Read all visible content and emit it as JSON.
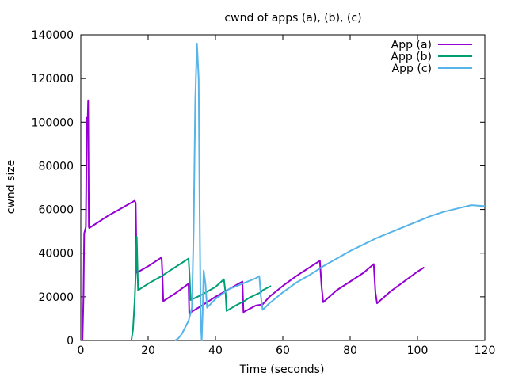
{
  "chart_data": {
    "type": "line",
    "title": "cwnd of apps (a), (b), (c)",
    "xlabel": "Time (seconds)",
    "ylabel": "cwnd size",
    "xlim": [
      0,
      120
    ],
    "ylim": [
      0,
      140000
    ],
    "x_ticks": [
      0,
      20,
      40,
      60,
      80,
      100,
      120
    ],
    "y_ticks": [
      0,
      20000,
      40000,
      60000,
      80000,
      100000,
      120000,
      140000
    ],
    "grid": false,
    "legend_position": "top-right",
    "series": [
      {
        "name": "App (a)",
        "color": "#9400d3",
        "points": [
          [
            0.5,
            0
          ],
          [
            0.8,
            20000
          ],
          [
            1.0,
            49000
          ],
          [
            1.5,
            52000
          ],
          [
            1.8,
            102000
          ],
          [
            2.0,
            98000
          ],
          [
            2.2,
            110000
          ],
          [
            2.4,
            52000
          ],
          [
            2.5,
            51500
          ],
          [
            5,
            54000
          ],
          [
            8,
            57000
          ],
          [
            12,
            60500
          ],
          [
            16,
            64000
          ],
          [
            16.3,
            63000
          ],
          [
            16.6,
            31000
          ],
          [
            20,
            34000
          ],
          [
            24,
            38000
          ],
          [
            24.2,
            32000
          ],
          [
            24.5,
            18000
          ],
          [
            28,
            21500
          ],
          [
            32,
            26000
          ],
          [
            32.2,
            12500
          ],
          [
            36,
            16000
          ],
          [
            40,
            20000
          ],
          [
            44,
            23500
          ],
          [
            48,
            27000
          ],
          [
            48.3,
            13000
          ],
          [
            52,
            16000
          ],
          [
            54,
            16500
          ],
          [
            56,
            20000
          ],
          [
            60,
            25000
          ],
          [
            64,
            29500
          ],
          [
            68,
            33500
          ],
          [
            71,
            36500
          ],
          [
            71.5,
            25000
          ],
          [
            72,
            17500
          ],
          [
            76,
            23000
          ],
          [
            80,
            27000
          ],
          [
            84,
            31000
          ],
          [
            87,
            35000
          ],
          [
            87.5,
            22000
          ],
          [
            88,
            17000
          ],
          [
            92,
            22500
          ],
          [
            96,
            27000
          ],
          [
            100,
            31500
          ],
          [
            102,
            33500
          ]
        ]
      },
      {
        "name": "App (b)",
        "color": "#009e73",
        "points": [
          [
            15,
            0
          ],
          [
            15.5,
            5000
          ],
          [
            16,
            18000
          ],
          [
            16.3,
            30000
          ],
          [
            16.6,
            47500
          ],
          [
            16.9,
            30000
          ],
          [
            17,
            23000
          ],
          [
            20,
            26000
          ],
          [
            24,
            29500
          ],
          [
            28,
            33500
          ],
          [
            32,
            37500
          ],
          [
            32.3,
            30000
          ],
          [
            32.6,
            18500
          ],
          [
            36,
            21000
          ],
          [
            40,
            24500
          ],
          [
            42.5,
            28000
          ],
          [
            43,
            21500
          ],
          [
            43.3,
            13500
          ],
          [
            46,
            16000
          ],
          [
            48.5,
            18000
          ],
          [
            50,
            19500
          ],
          [
            52,
            21000
          ],
          [
            53.5,
            22000
          ],
          [
            54,
            23000
          ],
          [
            56.5,
            25000
          ]
        ]
      },
      {
        "name": "App (c)",
        "color": "#56b4e9",
        "points": [
          [
            28,
            0
          ],
          [
            29,
            1000
          ],
          [
            30,
            3000
          ],
          [
            31,
            6000
          ],
          [
            32,
            9000
          ],
          [
            33,
            15000
          ],
          [
            33.5,
            50000
          ],
          [
            34,
            110000
          ],
          [
            34.5,
            136000
          ],
          [
            35,
            120000
          ],
          [
            35.3,
            60000
          ],
          [
            35.6,
            10000
          ],
          [
            35.9,
            0
          ],
          [
            36.2,
            14000
          ],
          [
            36.5,
            32000
          ],
          [
            37,
            26000
          ],
          [
            37.5,
            15000
          ],
          [
            40,
            19000
          ],
          [
            44,
            23500
          ],
          [
            48,
            26000
          ],
          [
            52,
            28500
          ],
          [
            53,
            29500
          ],
          [
            53.5,
            20000
          ],
          [
            54,
            14000
          ],
          [
            56,
            17000
          ],
          [
            60,
            22000
          ],
          [
            64,
            26500
          ],
          [
            68,
            30000
          ],
          [
            72,
            34000
          ],
          [
            76,
            37500
          ],
          [
            80,
            41000
          ],
          [
            84,
            44000
          ],
          [
            88,
            47000
          ],
          [
            92,
            49500
          ],
          [
            96,
            52000
          ],
          [
            100,
            54500
          ],
          [
            104,
            57000
          ],
          [
            108,
            59000
          ],
          [
            112,
            60500
          ],
          [
            116,
            62000
          ],
          [
            120,
            61500
          ]
        ]
      }
    ]
  }
}
